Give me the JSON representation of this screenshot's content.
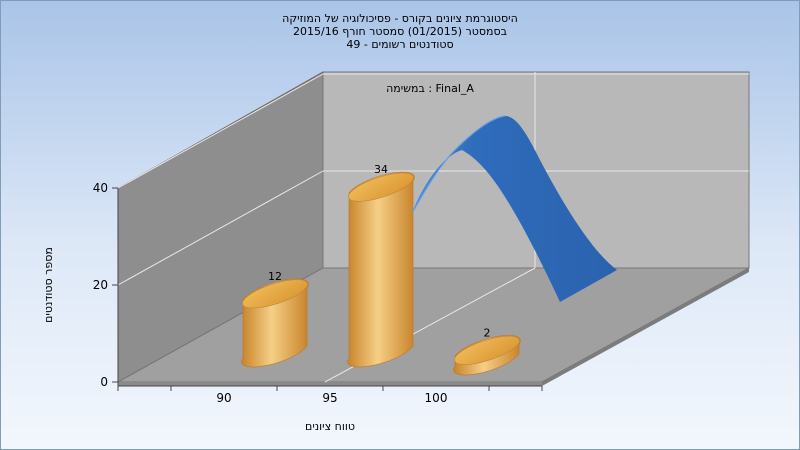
{
  "chart_data": {
    "type": "bar",
    "title_lines": [
      "היסטוגרמת ציונים בקורס - פסיכולוגיה של המוזיקה",
      "בסמסטר  (01/2015)  סמסטר חורף 2015/16",
      "סטודנטים רשומים - 49"
    ],
    "series_label": "במשימה : Final_A",
    "xlabel": "טווח ציונים",
    "ylabel": "מספר סטודנטים",
    "categories": [
      "90",
      "95",
      "100"
    ],
    "values": [
      12,
      34,
      2
    ],
    "y_ticks": [
      "0",
      "20",
      "40"
    ],
    "ylim": [
      0,
      40
    ],
    "grid": true,
    "curve": "normal-distribution ribbon (blue)",
    "colors": {
      "background_top": "#a9c4e8",
      "background_bottom": "#f3f7fd",
      "bar": "#e1a13f",
      "bar_light": "#f7d68c",
      "curve": "#2e6ab8",
      "curve_light": "#4b8ad8",
      "back_wall": "#b5b5b5",
      "side_wall": "#8c8c8c",
      "floor": "#9c9c9c"
    }
  }
}
